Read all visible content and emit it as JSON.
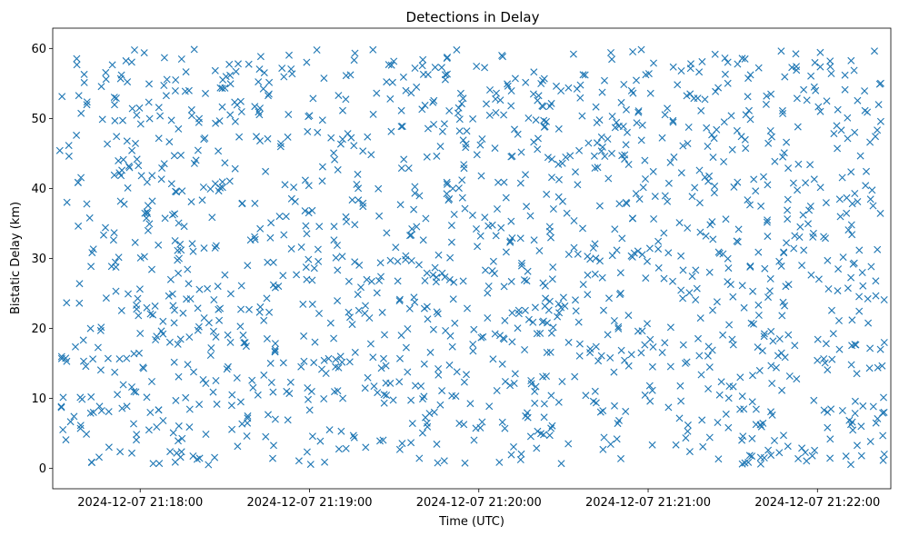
{
  "chart_data": {
    "type": "scatter",
    "title": "Detections in Delay",
    "xlabel": "Time (UTC)",
    "ylabel": "Bistatic Delay (km)",
    "marker": "x",
    "color": "#1f77b4",
    "grid": false,
    "legend": "none",
    "x_range": [
      "2024-12-07 21:17:29",
      "2024-12-07 21:22:26"
    ],
    "ylim": [
      -2.9,
      62.9
    ],
    "xticks": [
      "2024-12-07 21:18:00",
      "2024-12-07 21:19:00",
      "2024-12-07 21:20:00",
      "2024-12-07 21:21:00",
      "2024-12-07 21:22:00"
    ],
    "yticks": [
      "0",
      "10",
      "20",
      "30",
      "40",
      "50",
      "60"
    ],
    "point_count": 1500,
    "x_start": "2024-12-07 21:17:31",
    "x_end": "2024-12-07 21:22:24",
    "y_min": 0.5,
    "y_max": 59.9,
    "distribution": "uniform random in time and delay"
  }
}
